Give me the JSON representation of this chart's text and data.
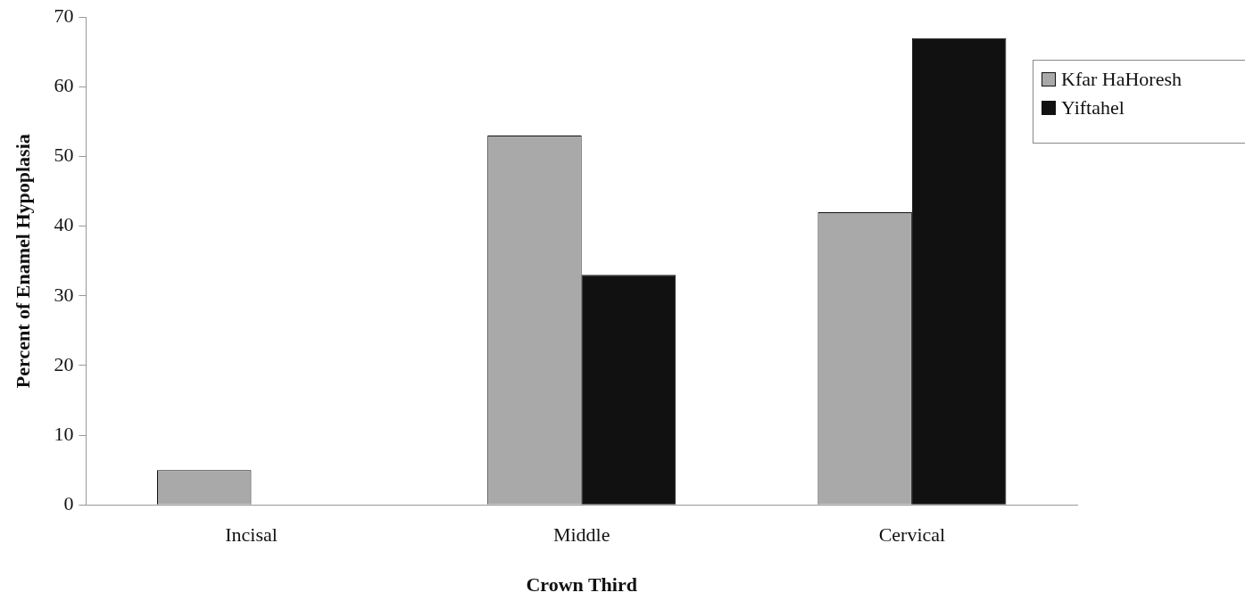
{
  "chart_data": {
    "type": "bar",
    "xlabel": "Crown Third",
    "ylabel": "Percent of Enamel Hypoplasia",
    "categories": [
      "Incisal",
      "Middle",
      "Cervical"
    ],
    "series": [
      {
        "name": "Kfar HaHoresh",
        "color": "#a9a9a9",
        "values": [
          5,
          53,
          42
        ]
      },
      {
        "name": "Yiftahel",
        "color": "#111111",
        "values": [
          0,
          33,
          67
        ]
      }
    ],
    "ylim": [
      0,
      70
    ],
    "yticks": [
      0,
      10,
      20,
      30,
      40,
      50,
      60,
      70
    ],
    "grid": false,
    "legend": "top right"
  }
}
